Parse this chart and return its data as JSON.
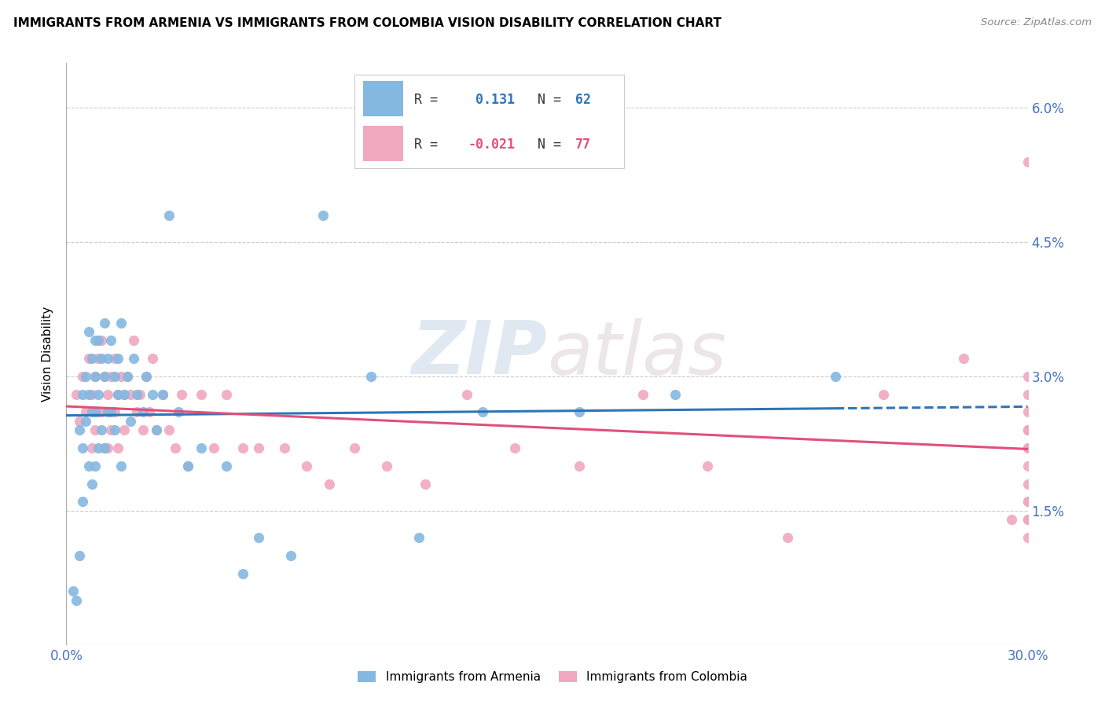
{
  "title": "IMMIGRANTS FROM ARMENIA VS IMMIGRANTS FROM COLOMBIA VISION DISABILITY CORRELATION CHART",
  "source": "Source: ZipAtlas.com",
  "ylabel_label": "Vision Disability",
  "xlim": [
    0.0,
    0.3
  ],
  "ylim": [
    0.0,
    0.065
  ],
  "armenia_R": 0.131,
  "armenia_N": 62,
  "colombia_R": -0.021,
  "colombia_N": 77,
  "armenia_color": "#85b8e0",
  "colombia_color": "#f0a8bf",
  "armenia_line_color": "#2f75b6",
  "colombia_line_color": "#e0517a",
  "armenia_scatter_x": [
    0.002,
    0.003,
    0.004,
    0.004,
    0.005,
    0.005,
    0.005,
    0.006,
    0.006,
    0.007,
    0.007,
    0.007,
    0.008,
    0.008,
    0.008,
    0.009,
    0.009,
    0.009,
    0.009,
    0.01,
    0.01,
    0.01,
    0.011,
    0.011,
    0.012,
    0.012,
    0.012,
    0.013,
    0.013,
    0.014,
    0.014,
    0.015,
    0.015,
    0.016,
    0.016,
    0.017,
    0.017,
    0.018,
    0.019,
    0.02,
    0.021,
    0.022,
    0.024,
    0.025,
    0.027,
    0.028,
    0.03,
    0.032,
    0.035,
    0.038,
    0.042,
    0.05,
    0.055,
    0.06,
    0.07,
    0.08,
    0.095,
    0.11,
    0.13,
    0.16,
    0.19,
    0.24
  ],
  "armenia_scatter_y": [
    0.006,
    0.005,
    0.024,
    0.01,
    0.028,
    0.022,
    0.016,
    0.03,
    0.025,
    0.035,
    0.028,
    0.02,
    0.032,
    0.026,
    0.018,
    0.034,
    0.03,
    0.026,
    0.02,
    0.034,
    0.028,
    0.022,
    0.032,
    0.024,
    0.036,
    0.03,
    0.022,
    0.032,
    0.026,
    0.034,
    0.026,
    0.03,
    0.024,
    0.032,
    0.028,
    0.036,
    0.02,
    0.028,
    0.03,
    0.025,
    0.032,
    0.028,
    0.026,
    0.03,
    0.028,
    0.024,
    0.028,
    0.048,
    0.026,
    0.02,
    0.022,
    0.02,
    0.008,
    0.012,
    0.01,
    0.048,
    0.03,
    0.012,
    0.026,
    0.026,
    0.028,
    0.03
  ],
  "colombia_scatter_x": [
    0.003,
    0.004,
    0.005,
    0.006,
    0.007,
    0.008,
    0.008,
    0.009,
    0.009,
    0.01,
    0.01,
    0.011,
    0.011,
    0.012,
    0.012,
    0.013,
    0.013,
    0.014,
    0.014,
    0.015,
    0.015,
    0.016,
    0.016,
    0.017,
    0.018,
    0.018,
    0.019,
    0.02,
    0.021,
    0.022,
    0.023,
    0.024,
    0.025,
    0.026,
    0.027,
    0.028,
    0.03,
    0.032,
    0.034,
    0.036,
    0.038,
    0.042,
    0.046,
    0.05,
    0.055,
    0.06,
    0.068,
    0.075,
    0.082,
    0.09,
    0.1,
    0.112,
    0.125,
    0.14,
    0.16,
    0.18,
    0.2,
    0.225,
    0.255,
    0.28,
    0.295,
    0.3,
    0.3,
    0.3,
    0.3,
    0.3,
    0.3,
    0.3,
    0.3,
    0.3,
    0.3,
    0.3,
    0.3,
    0.3,
    0.3,
    0.3,
    0.3
  ],
  "colombia_scatter_y": [
    0.028,
    0.025,
    0.03,
    0.026,
    0.032,
    0.028,
    0.022,
    0.03,
    0.024,
    0.032,
    0.026,
    0.034,
    0.026,
    0.03,
    0.022,
    0.028,
    0.022,
    0.03,
    0.024,
    0.032,
    0.026,
    0.028,
    0.022,
    0.03,
    0.028,
    0.024,
    0.03,
    0.028,
    0.034,
    0.026,
    0.028,
    0.024,
    0.03,
    0.026,
    0.032,
    0.024,
    0.028,
    0.024,
    0.022,
    0.028,
    0.02,
    0.028,
    0.022,
    0.028,
    0.022,
    0.022,
    0.022,
    0.02,
    0.018,
    0.022,
    0.02,
    0.018,
    0.028,
    0.022,
    0.02,
    0.028,
    0.02,
    0.012,
    0.028,
    0.032,
    0.014,
    0.016,
    0.03,
    0.026,
    0.024,
    0.018,
    0.014,
    0.022,
    0.02,
    0.024,
    0.028,
    0.022,
    0.012,
    0.016,
    0.014,
    0.024,
    0.054
  ],
  "xtick_positions": [
    0.0,
    0.05,
    0.1,
    0.15,
    0.2,
    0.25,
    0.3
  ],
  "ytick_positions": [
    0.0,
    0.015,
    0.03,
    0.045,
    0.06
  ],
  "ytick_labels": [
    "",
    "1.5%",
    "3.0%",
    "4.5%",
    "6.0%"
  ]
}
